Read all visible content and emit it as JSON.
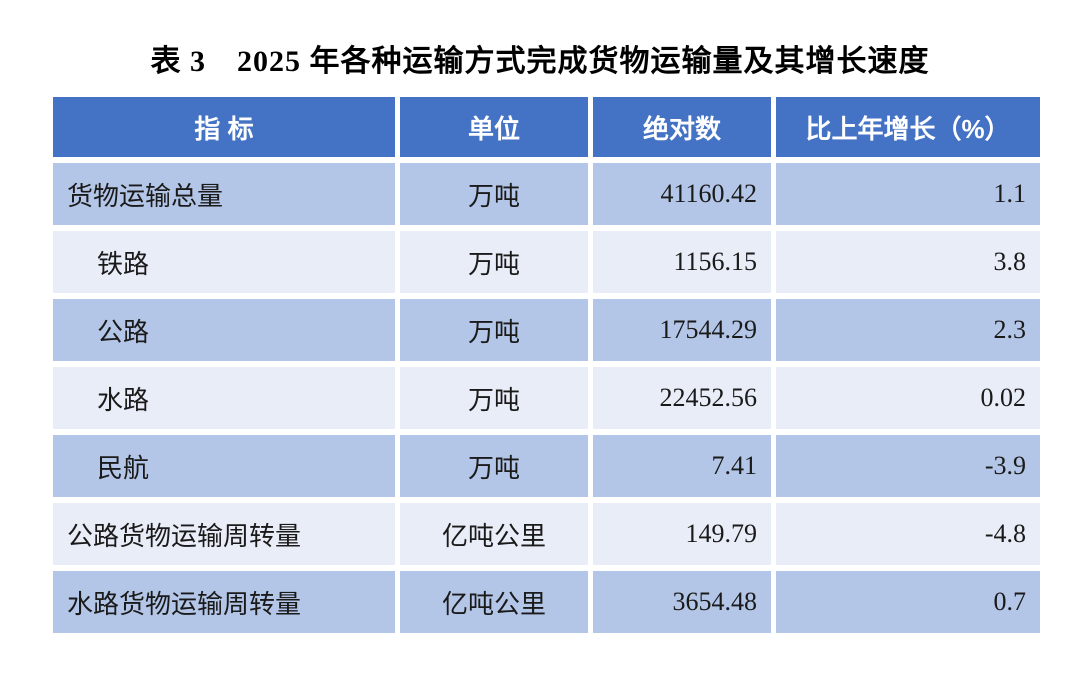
{
  "title": "表 3　2025 年各种运输方式完成货物运输量及其增长速度",
  "colors": {
    "header_bg": "#4472C4",
    "row_dark_bg": "#B4C6E7",
    "row_light_bg": "#E9EDF8",
    "header_text": "#FFFFFF",
    "body_text": "#1A1A1A",
    "page_bg": "#FFFFFF"
  },
  "table": {
    "columns": [
      "指 标",
      "单位",
      "绝对数",
      "比上年增长（%）"
    ],
    "rows": [
      {
        "indicator": "货物运输总量",
        "unit": "万吨",
        "value": "41160.42",
        "growth": "1.1"
      },
      {
        "indicator": "铁路",
        "unit": "万吨",
        "value": "1156.15",
        "growth": "3.8"
      },
      {
        "indicator": "公路",
        "unit": "万吨",
        "value": "17544.29",
        "growth": "2.3"
      },
      {
        "indicator": "水路",
        "unit": "万吨",
        "value": "22452.56",
        "growth": "0.02"
      },
      {
        "indicator": "民航",
        "unit": "万吨",
        "value": "7.41",
        "growth": "-3.9"
      },
      {
        "indicator": "公路货物运输周转量",
        "unit": "亿吨公里",
        "value": "149.79",
        "growth": "-4.8"
      },
      {
        "indicator": "水路货物运输周转量",
        "unit": "亿吨公里",
        "value": "3654.48",
        "growth": "0.7"
      }
    ]
  }
}
